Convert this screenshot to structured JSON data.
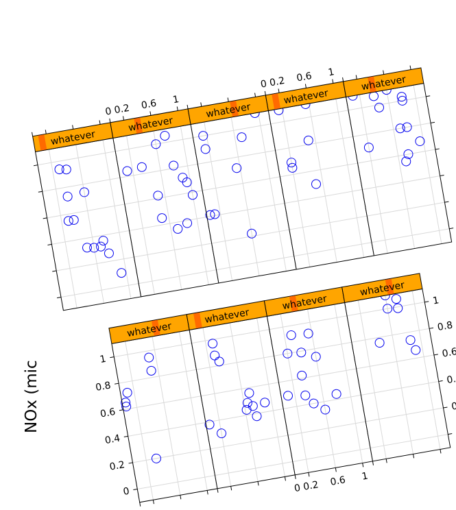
{
  "chart_data": {
    "type": "scatter",
    "layout": "lattice-conditioned-panels",
    "rotation_deg": -10,
    "ylabel": "NOx (mic",
    "xlim": [
      0,
      1.15
    ],
    "ylim": [
      -0.1,
      1.1
    ],
    "x_ticks": [
      0,
      0.2,
      0.6,
      1
    ],
    "x_tick_labels": [
      "0",
      "0.2",
      "0.6",
      "1"
    ],
    "y_ticks": [
      0,
      0.2,
      0.4,
      0.6,
      0.8,
      1
    ],
    "y_tick_labels": [
      "0",
      "0.2",
      "0.4",
      "0.6",
      "0.8",
      "1"
    ],
    "marker_color": "#0000ee",
    "strip_color": "#ffa500",
    "strip_indicator_color": "#ff6a00",
    "panel_border_color": "#000000",
    "grid_color": "#d9d9d9",
    "panels": [
      {
        "row": "top",
        "col": 1,
        "strip": "whatever",
        "points": [
          [
            0.3,
            0.94
          ],
          [
            0.4,
            0.93
          ],
          [
            0.35,
            0.73
          ],
          [
            0.6,
            0.74
          ],
          [
            0.3,
            0.55
          ],
          [
            0.38,
            0.55
          ],
          [
            0.5,
            0.33
          ],
          [
            0.6,
            0.32
          ],
          [
            0.7,
            0.32
          ],
          [
            0.75,
            0.36
          ],
          [
            0.8,
            0.26
          ],
          [
            0.93,
            0.1
          ]
        ]
      },
      {
        "row": "top",
        "col": 2,
        "strip": "whatever",
        "points": [
          [
            0.12,
            0.84
          ],
          [
            0.34,
            0.85
          ],
          [
            0.5,
            0.62
          ],
          [
            0.5,
            0.45
          ],
          [
            0.6,
            1.0
          ],
          [
            0.75,
            1.05
          ],
          [
            0.8,
            0.82
          ],
          [
            0.9,
            0.72
          ],
          [
            0.95,
            0.68
          ],
          [
            1.0,
            0.58
          ],
          [
            0.7,
            0.35
          ],
          [
            0.85,
            0.38
          ]
        ]
      },
      {
        "row": "top",
        "col": 3,
        "strip": "whatever",
        "points": [
          [
            0.15,
            1.0
          ],
          [
            0.15,
            0.9
          ],
          [
            0.05,
            0.41
          ],
          [
            0.12,
            0.41
          ],
          [
            0.6,
            0.22
          ],
          [
            0.55,
            0.72
          ],
          [
            0.7,
            0.94
          ],
          [
            0.95,
            1.1
          ]
        ]
      },
      {
        "row": "top",
        "col": 4,
        "strip": "whatever",
        "points": [
          [
            0.1,
            1.12
          ],
          [
            0.15,
            1.09
          ],
          [
            0.55,
            1.1
          ],
          [
            0.5,
            0.83
          ],
          [
            0.2,
            0.69
          ],
          [
            0.2,
            0.65
          ],
          [
            0.5,
            0.5
          ]
        ]
      },
      {
        "row": "top",
        "col": 5,
        "strip": "whatever",
        "points": [
          [
            0.1,
            1.1
          ],
          [
            0.4,
            1.16
          ],
          [
            0.5,
            1.15
          ],
          [
            0.6,
            1.1
          ],
          [
            0.7,
            1.11
          ],
          [
            0.75,
            1.13
          ],
          [
            0.85,
            1.12
          ],
          [
            0.4,
            1.07
          ],
          [
            0.45,
            0.98
          ],
          [
            0.8,
            1.0
          ],
          [
            0.8,
            1.03
          ],
          [
            0.7,
            0.8
          ],
          [
            0.8,
            0.8
          ],
          [
            0.2,
            0.7
          ],
          [
            0.95,
            0.68
          ],
          [
            0.75,
            0.6
          ],
          [
            0.7,
            0.55
          ]
        ]
      },
      {
        "row": "bottom",
        "col": 1,
        "strip": "whatever",
        "points": [
          [
            0.5,
            0.95
          ],
          [
            0.5,
            0.85
          ],
          [
            0.1,
            0.72
          ],
          [
            0.05,
            0.65
          ],
          [
            0.05,
            0.62
          ],
          [
            0.35,
            0.2
          ]
        ]
      },
      {
        "row": "bottom",
        "col": 2,
        "strip": "whatever",
        "points": [
          [
            0.3,
            0.97
          ],
          [
            0.3,
            0.88
          ],
          [
            0.35,
            0.83
          ],
          [
            0.05,
            0.38
          ],
          [
            0.2,
            0.3
          ],
          [
            0.7,
            0.56
          ],
          [
            0.65,
            0.49
          ],
          [
            0.72,
            0.46
          ],
          [
            0.62,
            0.44
          ],
          [
            0.9,
            0.47
          ],
          [
            0.75,
            0.38
          ]
        ]
      },
      {
        "row": "bottom",
        "col": 3,
        "strip": "whatever",
        "points": [
          [
            0.3,
            0.93
          ],
          [
            0.55,
            0.92
          ],
          [
            0.2,
            0.8
          ],
          [
            0.4,
            0.79
          ],
          [
            0.6,
            0.74
          ],
          [
            0.35,
            0.62
          ],
          [
            0.1,
            0.49
          ],
          [
            0.35,
            0.47
          ],
          [
            0.45,
            0.4
          ],
          [
            0.8,
            0.44
          ],
          [
            0.6,
            0.34
          ]
        ]
      },
      {
        "row": "bottom",
        "col": 4,
        "strip": "whatever",
        "points": [
          [
            0.05,
            1.12
          ],
          [
            0.6,
            1.1
          ],
          [
            0.75,
            1.06
          ],
          [
            0.6,
            1.0
          ],
          [
            0.75,
            0.99
          ],
          [
            0.4,
            0.76
          ],
          [
            0.85,
            0.74
          ],
          [
            0.9,
            0.66
          ]
        ]
      }
    ]
  }
}
